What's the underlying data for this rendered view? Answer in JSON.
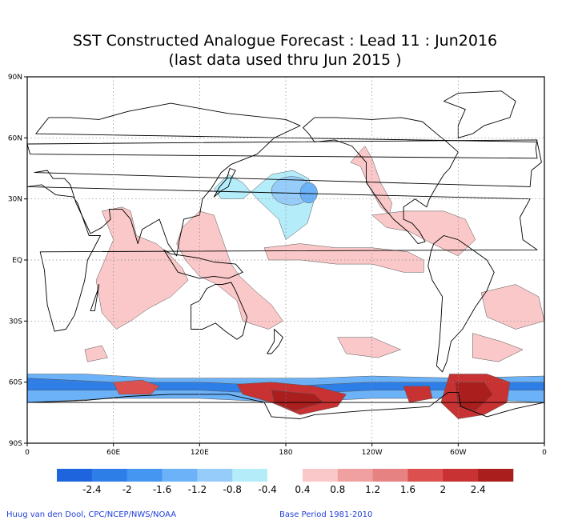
{
  "title_line1": "SST Constructed Analogue Forecast : Lead 11 : Jun2016",
  "title_line2": "(last data used thru Jun 2015 )",
  "chart_data": {
    "type": "heatmap",
    "title": "SST Constructed Analogue Forecast : Lead 11 : Jun2016",
    "subtitle": "(last data used thru Jun 2015 )",
    "x_ticks": [
      "0",
      "60E",
      "120E",
      "180",
      "120W",
      "60W",
      "0"
    ],
    "x_tick_lons": [
      0,
      60,
      120,
      180,
      240,
      300,
      360
    ],
    "y_ticks": [
      "90N",
      "60N",
      "30N",
      "EQ",
      "30S",
      "60S",
      "90S"
    ],
    "y_tick_lats": [
      90,
      60,
      30,
      0,
      -30,
      -60,
      -90
    ],
    "lon_range": [
      0,
      360
    ],
    "lat_range": [
      -90,
      90
    ],
    "grid": true,
    "colorbar": {
      "labels": [
        "-2.4",
        "-2",
        "-1.6",
        "-1.2",
        "-0.8",
        "-0.4",
        "0.4",
        "0.8",
        "1.2",
        "1.6",
        "2",
        "2.4"
      ],
      "colors": [
        "#1e64dc",
        "#2e7ee8",
        "#4496f0",
        "#6cb2f8",
        "#96ccfa",
        "#b4ecfa",
        "#ffffff",
        "#fac8c8",
        "#f0a0a0",
        "#e68282",
        "#dc5050",
        "#c83232",
        "#aa1e1e"
      ]
    },
    "anomaly_regions": [
      {
        "sign": "negative",
        "lon": [
          130,
          240
        ],
        "lat": [
          40,
          10
        ],
        "shape": "poly",
        "points": [
          [
            130,
            35
          ],
          [
            140,
            42
          ],
          [
            150,
            38
          ],
          [
            160,
            30
          ],
          [
            175,
            20
          ],
          [
            180,
            10
          ],
          [
            195,
            18
          ],
          [
            200,
            30
          ],
          [
            196,
            40
          ],
          [
            185,
            44
          ],
          [
            170,
            42
          ],
          [
            150,
            30
          ],
          [
            135,
            30
          ]
        ],
        "color": "#b4ecfa"
      },
      {
        "sign": "negative",
        "shape": "ellipse",
        "lon": 184,
        "lat": 34,
        "rx": 14,
        "ry": 7,
        "color": "#96ccfa"
      },
      {
        "sign": "negative",
        "shape": "ellipse",
        "lon": 196,
        "lat": 33,
        "rx": 6,
        "ry": 5,
        "color": "#6cb2f8"
      },
      {
        "sign": "positive",
        "shape": "poly",
        "points": [
          [
            225,
            48
          ],
          [
            235,
            56
          ],
          [
            240,
            50
          ],
          [
            246,
            38
          ],
          [
            254,
            28
          ],
          [
            252,
            22
          ],
          [
            246,
            26
          ],
          [
            238,
            36
          ],
          [
            232,
            46
          ]
        ],
        "color": "#fac8c8"
      },
      {
        "sign": "positive",
        "shape": "poly",
        "points": [
          [
            52,
            24
          ],
          [
            66,
            26
          ],
          [
            72,
            24
          ],
          [
            76,
            12
          ],
          [
            90,
            8
          ],
          [
            100,
            2
          ],
          [
            108,
            -4
          ],
          [
            112,
            -10
          ],
          [
            100,
            -18
          ],
          [
            84,
            -24
          ],
          [
            72,
            -30
          ],
          [
            62,
            -34
          ],
          [
            52,
            -26
          ],
          [
            48,
            -10
          ],
          [
            54,
            0
          ],
          [
            60,
            10
          ]
        ],
        "color": "#fac8c8"
      },
      {
        "sign": "positive",
        "shape": "poly",
        "points": [
          [
            108,
            16
          ],
          [
            120,
            24
          ],
          [
            130,
            22
          ],
          [
            138,
            6
          ],
          [
            142,
            -2
          ],
          [
            148,
            -8
          ],
          [
            160,
            -16
          ],
          [
            170,
            -22
          ],
          [
            178,
            -30
          ],
          [
            168,
            -34
          ],
          [
            150,
            -30
          ],
          [
            146,
            -20
          ],
          [
            132,
            -12
          ],
          [
            120,
            -8
          ],
          [
            110,
            0
          ],
          [
            104,
            8
          ]
        ],
        "color": "#fac8c8"
      },
      {
        "sign": "positive",
        "shape": "poly",
        "points": [
          [
            165,
            6
          ],
          [
            190,
            8
          ],
          [
            215,
            6
          ],
          [
            240,
            6
          ],
          [
            265,
            4
          ],
          [
            276,
            0
          ],
          [
            276,
            -6
          ],
          [
            262,
            -6
          ],
          [
            240,
            -2
          ],
          [
            215,
            -2
          ],
          [
            190,
            0
          ],
          [
            168,
            0
          ]
        ],
        "color": "#fac8c8"
      },
      {
        "sign": "positive",
        "shape": "poly",
        "points": [
          [
            240,
            22
          ],
          [
            262,
            24
          ],
          [
            290,
            24
          ],
          [
            305,
            20
          ],
          [
            312,
            10
          ],
          [
            300,
            2
          ],
          [
            282,
            8
          ],
          [
            266,
            14
          ],
          [
            250,
            16
          ]
        ],
        "color": "#fac8c8"
      },
      {
        "sign": "positive",
        "shape": "poly",
        "points": [
          [
            316,
            -16
          ],
          [
            340,
            -12
          ],
          [
            356,
            -18
          ],
          [
            360,
            -30
          ],
          [
            340,
            -34
          ],
          [
            320,
            -28
          ]
        ],
        "color": "#fac8c8"
      },
      {
        "sign": "positive",
        "shape": "poly",
        "points": [
          [
            310,
            -36
          ],
          [
            330,
            -40
          ],
          [
            345,
            -44
          ],
          [
            328,
            -50
          ],
          [
            310,
            -48
          ]
        ],
        "color": "#fac8c8"
      },
      {
        "sign": "positive",
        "shape": "poly",
        "points": [
          [
            216,
            -38
          ],
          [
            240,
            -38
          ],
          [
            260,
            -44
          ],
          [
            244,
            -48
          ],
          [
            222,
            -46
          ]
        ],
        "color": "#fac8c8"
      },
      {
        "sign": "positive",
        "shape": "poly",
        "points": [
          [
            40,
            -44
          ],
          [
            52,
            -42
          ],
          [
            56,
            -48
          ],
          [
            42,
            -50
          ]
        ],
        "color": "#fac8c8"
      },
      {
        "sign": "negative",
        "shape": "poly",
        "points": [
          [
            0,
            -56
          ],
          [
            40,
            -56
          ],
          [
            90,
            -58
          ],
          [
            150,
            -58
          ],
          [
            200,
            -58
          ],
          [
            240,
            -57
          ],
          [
            300,
            -58
          ],
          [
            360,
            -57
          ],
          [
            360,
            -70
          ],
          [
            300,
            -68
          ],
          [
            240,
            -68
          ],
          [
            180,
            -70
          ],
          [
            120,
            -68
          ],
          [
            60,
            -68
          ],
          [
            0,
            -70
          ]
        ],
        "color": "#6cb2f8"
      },
      {
        "sign": "negative",
        "shape": "poly",
        "points": [
          [
            0,
            -58
          ],
          [
            60,
            -60
          ],
          [
            120,
            -60
          ],
          [
            180,
            -62
          ],
          [
            240,
            -60
          ],
          [
            300,
            -60
          ],
          [
            360,
            -60
          ],
          [
            360,
            -64
          ],
          [
            300,
            -64
          ],
          [
            240,
            -64
          ],
          [
            180,
            -66
          ],
          [
            120,
            -64
          ],
          [
            60,
            -64
          ],
          [
            0,
            -64
          ]
        ],
        "color": "#2e7ee8"
      },
      {
        "sign": "positive",
        "shape": "poly",
        "points": [
          [
            60,
            -60
          ],
          [
            80,
            -59
          ],
          [
            92,
            -62
          ],
          [
            86,
            -66
          ],
          [
            64,
            -66
          ]
        ],
        "color": "#dc5050"
      },
      {
        "sign": "positive",
        "shape": "poly",
        "points": [
          [
            146,
            -61
          ],
          [
            170,
            -60
          ],
          [
            200,
            -62
          ],
          [
            222,
            -66
          ],
          [
            216,
            -72
          ],
          [
            190,
            -76
          ],
          [
            170,
            -70
          ],
          [
            150,
            -66
          ]
        ],
        "color": "#c83232"
      },
      {
        "sign": "positive",
        "shape": "poly",
        "points": [
          [
            170,
            -64
          ],
          [
            200,
            -66
          ],
          [
            206,
            -70
          ],
          [
            186,
            -74
          ],
          [
            172,
            -70
          ]
        ],
        "color": "#aa1e1e"
      },
      {
        "sign": "positive",
        "shape": "poly",
        "points": [
          [
            262,
            -62
          ],
          [
            280,
            -62
          ],
          [
            282,
            -68
          ],
          [
            266,
            -70
          ]
        ],
        "color": "#c83232"
      },
      {
        "sign": "positive",
        "shape": "poly",
        "points": [
          [
            294,
            -56
          ],
          [
            320,
            -56
          ],
          [
            336,
            -60
          ],
          [
            334,
            -70
          ],
          [
            318,
            -76
          ],
          [
            300,
            -78
          ],
          [
            288,
            -70
          ]
        ],
        "color": "#c83232"
      },
      {
        "sign": "positive",
        "shape": "poly",
        "points": [
          [
            298,
            -60
          ],
          [
            318,
            -60
          ],
          [
            324,
            -66
          ],
          [
            312,
            -74
          ],
          [
            300,
            -72
          ]
        ],
        "color": "#aa1e1e"
      }
    ]
  },
  "footer": {
    "credit": "Huug van den Dool, CPC/NCEP/NWS/NOAA",
    "base_period": "Base Period 1981-2010"
  }
}
